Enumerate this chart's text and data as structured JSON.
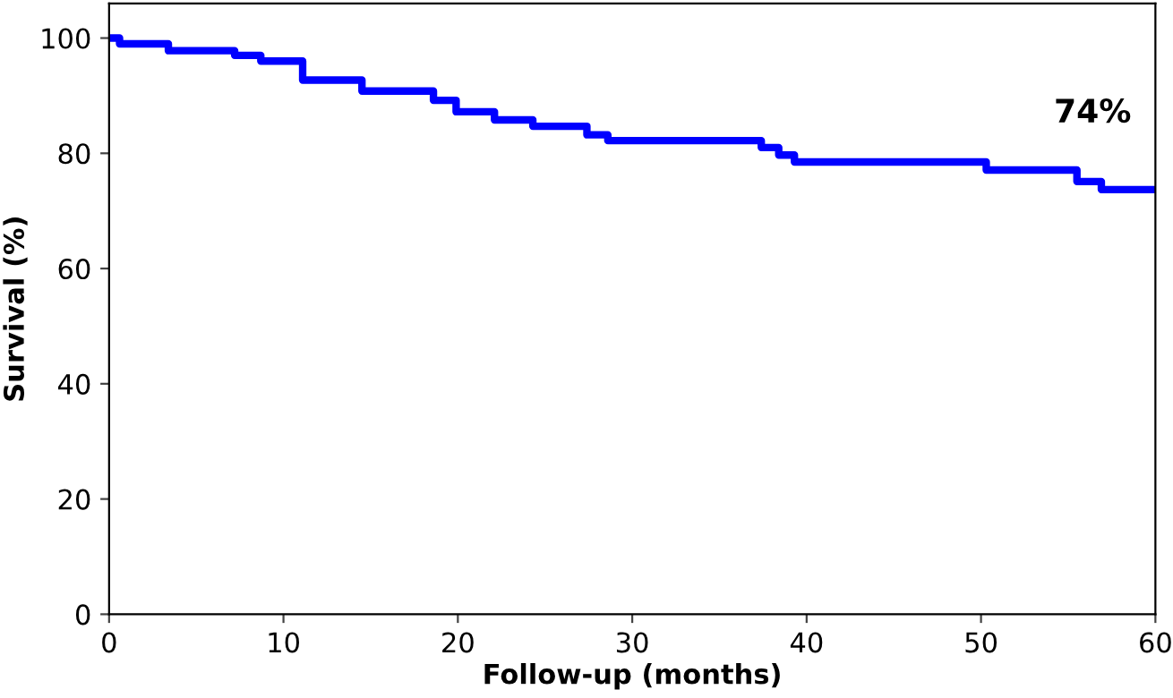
{
  "chart_data": {
    "type": "step",
    "xlabel": "Follow-up (months)",
    "ylabel": "Survival (%)",
    "x": [
      0,
      0.6,
      3.4,
      7.2,
      8.7,
      11.1,
      14.5,
      18.6,
      19.9,
      22.1,
      24.3,
      27.4,
      28.6,
      37.4,
      38.4,
      39.3,
      50.3,
      55.5,
      56.9,
      60
    ],
    "series": [
      {
        "color": "#0000ff",
        "values": [
          100,
          99.0,
          97.8,
          97.0,
          96.0,
          92.7,
          90.8,
          89.2,
          87.2,
          85.8,
          84.7,
          83.2,
          82.2,
          81.0,
          79.7,
          78.5,
          77.1,
          75.1,
          73.7,
          73.7
        ]
      }
    ],
    "annotations": [
      "74%"
    ],
    "xlim": [
      0,
      60
    ],
    "ylim": [
      0,
      106
    ],
    "xticks": [
      0,
      10,
      20,
      30,
      40,
      50,
      60
    ],
    "yticks": [
      0,
      20,
      40,
      60,
      80,
      100
    ],
    "grid": false,
    "legend": false
  }
}
